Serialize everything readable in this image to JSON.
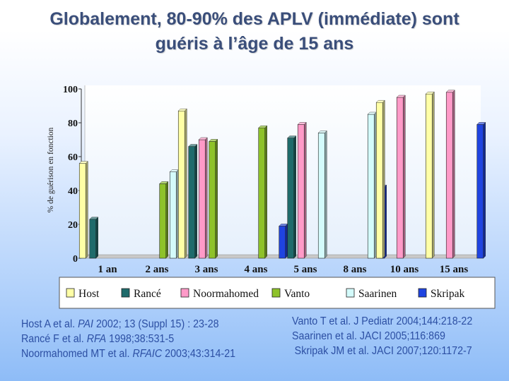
{
  "title": {
    "line1": "Globalement, 80-90% des APLV (immédiate) sont",
    "line2": "guéris à l’âge de 15 ans"
  },
  "colors": {
    "Host": "#ffffa6",
    "Rancé": "#1f6b6b",
    "Noormahomed": "#ff9ac8",
    "Vanto": "#8ec22a",
    "Saarinen": "#d4fbfb",
    "Skripak": "#1f44e0"
  },
  "chart_data": {
    "type": "bar",
    "title": "",
    "ylabel": "% de guérison en fonction",
    "xlabel": "",
    "ylim": [
      0,
      100
    ],
    "yticks": [
      "0",
      "20",
      "40",
      "60",
      "80",
      "100"
    ],
    "categories": [
      "1 an",
      "2 ans",
      "3 ans",
      "4 ans",
      "5 ans",
      "8 ans",
      "10 ans",
      "15 ans"
    ],
    "series": [
      {
        "name": "Host",
        "values": [
          56,
          null,
          87,
          null,
          null,
          null,
          92,
          97
        ]
      },
      {
        "name": "Rancé",
        "values": [
          23,
          null,
          66,
          null,
          71,
          null,
          null,
          null
        ]
      },
      {
        "name": "Noormahomed",
        "values": [
          null,
          null,
          70,
          null,
          79,
          null,
          95,
          98
        ]
      },
      {
        "name": "Vanto",
        "values": [
          null,
          44,
          69,
          77,
          null,
          null,
          null,
          null
        ]
      },
      {
        "name": "Saarinen",
        "values": [
          null,
          51,
          null,
          null,
          74,
          85,
          null,
          null
        ]
      },
      {
        "name": "Skripak",
        "values": [
          null,
          null,
          null,
          19,
          null,
          42,
          null,
          79
        ]
      }
    ],
    "legend_position": "bottom"
  },
  "references": {
    "left": [
      {
        "author": "Host A et al. ",
        "journal": "PAI",
        "rest": " 2002; 13 (Suppl 15) : 23-28"
      },
      {
        "author": "Rancé F et al. ",
        "journal": "RFA",
        "rest": " 1998;38:531-5"
      },
      {
        "author": "Noormahomed MT et al. ",
        "journal": "RFAIC",
        "rest": " 2003;43:314-21"
      }
    ],
    "right": [
      {
        "text": "Vanto T et al. J Pediatr 2004;144:218-22"
      },
      {
        "text": "Saarinen et al. JACI 2005;116:869"
      },
      {
        "text": "Skripak JM et al. JACI 2007;120:1172-7"
      }
    ]
  }
}
